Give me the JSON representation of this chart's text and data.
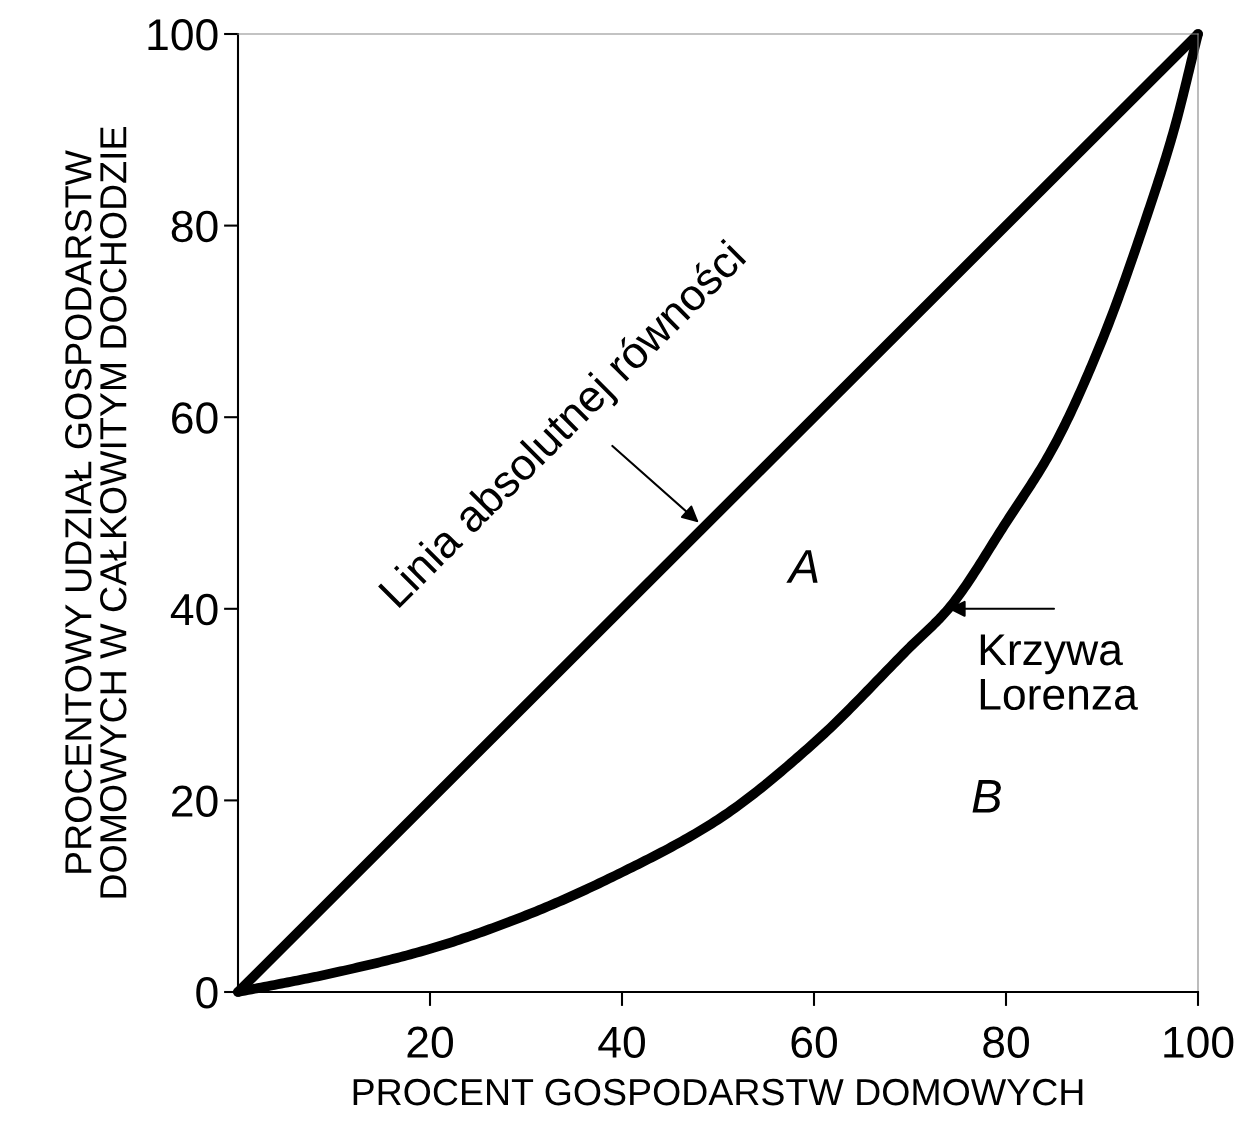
{
  "chart_data": {
    "type": "line",
    "xlabel": "PROCENT GOSPODARSTW DOMOWYCH",
    "ylabel": "PROCENTOWY UDZIAŁ GOSPODARSTW\nDOMOWYCH W CAŁKOWITYM DOCHODZIE",
    "series": [
      {
        "color": "#000000",
        "x": [
          0,
          100
        ],
        "values": [
          0,
          100
        ]
      },
      {
        "color": "#000000",
        "x": [
          0,
          10,
          20,
          30,
          40,
          50,
          60,
          70,
          74,
          80,
          85,
          90,
          95,
          97.5,
          100
        ],
        "values": [
          0,
          2,
          4.5,
          8,
          12.5,
          18,
          26,
          36,
          40,
          49,
          57,
          68,
          82,
          90,
          100
        ]
      }
    ],
    "xlim": [
      0,
      100
    ],
    "ylim": [
      0,
      100
    ],
    "xticks": [
      20,
      40,
      60,
      80,
      100
    ],
    "yticks": [
      0,
      20,
      40,
      60,
      80,
      100
    ],
    "grid": false,
    "marker": "none",
    "line_style": "solid",
    "annotations": [
      {
        "text": "Linia absolutnej równości",
        "x": 48,
        "y": 49
      },
      {
        "text": "Krzywa Lorenza",
        "x": 74,
        "y": 40
      },
      "A",
      "B"
    ]
  }
}
